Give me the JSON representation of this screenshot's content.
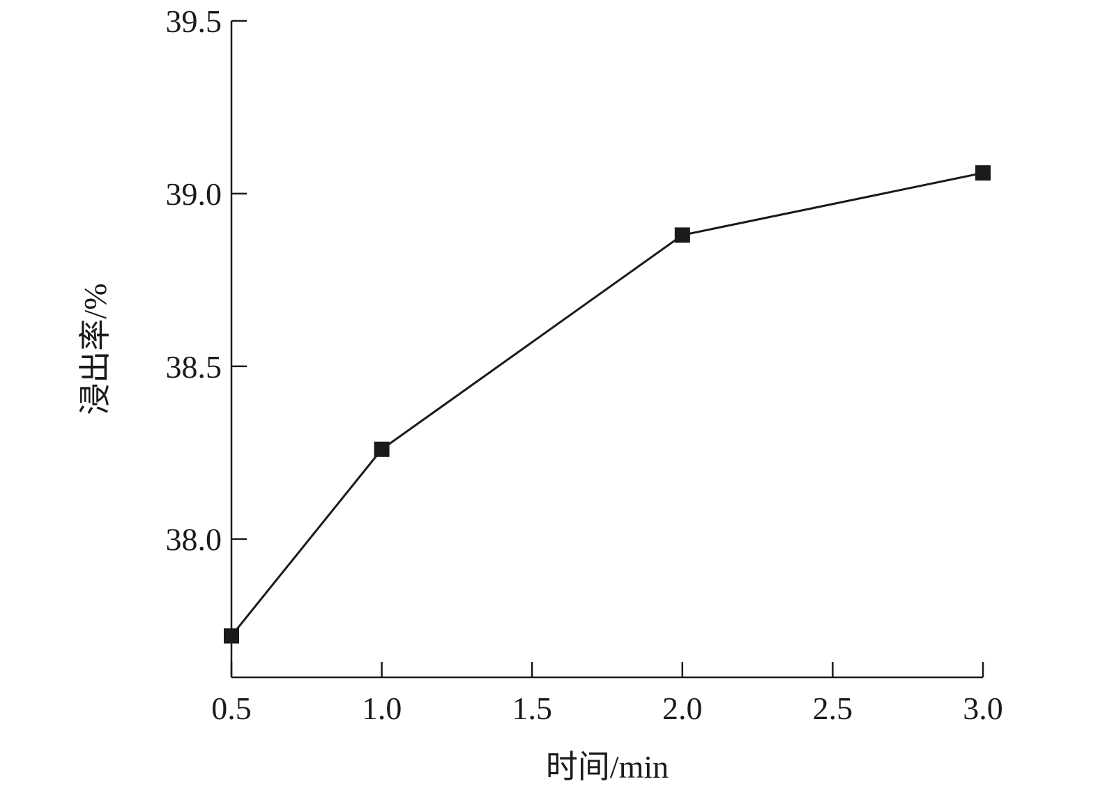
{
  "chart_data": {
    "type": "line",
    "xlabel": "时间/min",
    "ylabel": "浸出率/%",
    "xlim": [
      0.5,
      3.0
    ],
    "ylim": [
      37.6,
      39.5
    ],
    "x_ticks": [
      "0.5",
      "1.0",
      "1.5",
      "2.0",
      "2.5",
      "3.0"
    ],
    "y_ticks": [
      "38.0",
      "38.5",
      "39.0",
      "39.5"
    ],
    "grid": false,
    "series": [
      {
        "marker": "square",
        "color": "#1a1a1a",
        "points": [
          {
            "x": 0.5,
            "y": 37.72
          },
          {
            "x": 1.0,
            "y": 38.26
          },
          {
            "x": 2.0,
            "y": 38.88
          },
          {
            "x": 3.0,
            "y": 39.06
          }
        ]
      }
    ]
  }
}
